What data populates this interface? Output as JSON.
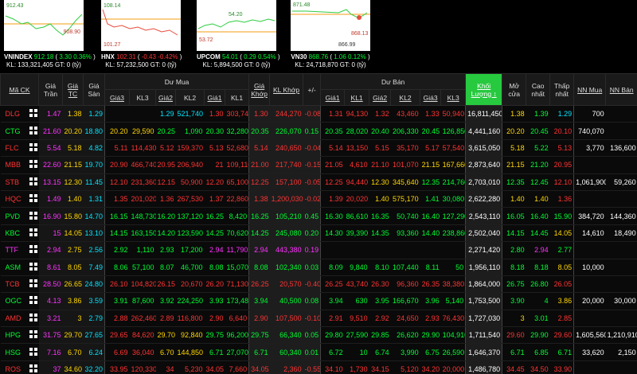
{
  "indices": [
    {
      "name": "VNINDEX",
      "value": "912.18",
      "change": "3.30",
      "pct": "0.36%",
      "kl": "133,321,405",
      "gt": "0",
      "high": "912.43",
      "low": "908.90"
    },
    {
      "name": "HNX",
      "value": "102.31",
      "change": "-0.43",
      "pct": "-0.42%",
      "kl": "57,232,500",
      "gt": "0",
      "high": "108.14",
      "low": "101.27"
    },
    {
      "name": "UPCOM",
      "value": "54.01",
      "change": "0.29",
      "pct": "0.54%",
      "kl": "5,894,500",
      "gt": "0",
      "high": "54.20",
      "low": "53.72"
    },
    {
      "name": "VN30",
      "value": "868.76",
      "change": "1.06",
      "pct": "0.12%",
      "kl": "24,718,870",
      "gt": "0",
      "high": "871.48",
      "low": "866.99",
      "last": "868.13"
    }
  ],
  "index_labels": {
    "kl": "KL:",
    "gt": "GT:",
    "unit": "(tỷ)"
  },
  "table": {
    "symbol": "Mã CK",
    "buy_group": "Dư Mua",
    "sell_group": "Dư Bán",
    "columns": [
      "Giá Trần",
      "Giá TC",
      "Giá Sàn",
      "Giá3",
      "KL3",
      "Giá2",
      "KL2",
      "Giá1",
      "KL1",
      "Giá Khớp",
      "KL Khớp",
      "+/-",
      "Giá1",
      "KL1",
      "Giá2",
      "KL2",
      "Giá3",
      "KL3",
      "Khối Lượng ↕",
      "Mở cửa",
      "Cao nhất",
      "Thấp nhất",
      "NN Mua",
      "NN Bán"
    ],
    "rows": [
      {
        "symbol": "DLG",
        "cells": [
          "1.47",
          "1.38",
          "1.29",
          null,
          null,
          "1.29",
          "521,740",
          "1.30",
          "303,740",
          "1.30",
          "244,270",
          "-0.08",
          "1.31",
          "94,130",
          "1.32",
          "43,460",
          "1.33",
          "50,940",
          "16,811,450",
          "1.38",
          "1.39",
          "1.29",
          "700",
          null
        ]
      },
      {
        "symbol": "CTG",
        "cells": [
          "21.60",
          "20.20",
          "18.80",
          "20.20",
          "29,590",
          "20.25",
          "1,090",
          "20.30",
          "32,280",
          "20.35",
          "226,070",
          "0.15",
          "20.35",
          "28,020",
          "20.40",
          "206,330",
          "20.45",
          "126,850",
          "4,441,160",
          "20.20",
          "20.45",
          "20.10",
          "740,070",
          null
        ]
      },
      {
        "symbol": "FLC",
        "cells": [
          "5.54",
          "5.18",
          "4.82",
          "5.11",
          "114,430",
          "5.12",
          "159,370",
          "5.13",
          "52,680",
          "5.14",
          "240,650",
          "-0.04",
          "5.14",
          "13,150",
          "5.15",
          "35,170",
          "5.17",
          "57,540",
          "3,615,050",
          "5.18",
          "5.22",
          "5.13",
          "3,770",
          "136,600"
        ]
      },
      {
        "symbol": "MBB",
        "cells": [
          "22.60",
          "21.15",
          "19.70",
          "20.90",
          "466,740",
          "20.95",
          "206,940",
          "21",
          "109,110",
          "21.00",
          "217,740",
          "-0.15",
          "21.05",
          "4,610",
          "21.10",
          "101,070",
          "21.15",
          "167,660",
          "2,873,640",
          "21.15",
          "21.20",
          "20.95",
          null,
          null
        ]
      },
      {
        "symbol": "STB",
        "cells": [
          "13.15",
          "12.30",
          "11.45",
          "12.10",
          "231,360",
          "12.15",
          "50,900",
          "12.20",
          "65,100",
          "12.25",
          "157,100",
          "-0.05",
          "12.25",
          "94,440",
          "12.30",
          "345,640",
          "12.35",
          "214,760",
          "2,703,010",
          "12.35",
          "12.45",
          "12.10",
          "1,061,900",
          "59,260"
        ]
      },
      {
        "symbol": "HQC",
        "cells": [
          "1.49",
          "1.40",
          "1.31",
          "1.35",
          "201,020",
          "1.36",
          "267,530",
          "1.37",
          "22,860",
          "1.38",
          "1,200,030",
          "-0.02",
          "1.39",
          "20,020",
          "1.40",
          "575,170",
          "1.41",
          "30,080",
          "2,622,280",
          "1.40",
          "1.40",
          "1.36",
          null,
          null
        ]
      },
      {
        "symbol": "PVD",
        "cells": [
          "16.90",
          "15.80",
          "14.70",
          "16.15",
          "148,730",
          "16.20",
          "137,120",
          "16.25",
          "8,420",
          "16.25",
          "105,210",
          "0.45",
          "16.30",
          "86,610",
          "16.35",
          "50,740",
          "16.40",
          "127,290",
          "2,543,110",
          "16.05",
          "16.40",
          "15.90",
          "384,720",
          "144,360"
        ]
      },
      {
        "symbol": "KBC",
        "cells": [
          "15",
          "14.05",
          "13.10",
          "14.15",
          "163,150",
          "14.20",
          "123,590",
          "14.25",
          "70,620",
          "14.25",
          "245,080",
          "0.20",
          "14.30",
          "39,390",
          "14.35",
          "93,360",
          "14.40",
          "238,860",
          "2,502,040",
          "14.15",
          "14.45",
          "14.05",
          "14,610",
          "18,490"
        ]
      },
      {
        "symbol": "TTF",
        "cells": [
          "2.94",
          "2.75",
          "2.56",
          "2.92",
          "1,110",
          "2.93",
          "17,200",
          "2.94",
          "11,790",
          "2.94",
          "443,380",
          "0.19",
          null,
          null,
          null,
          null,
          null,
          null,
          "2,271,420",
          "2.80",
          "2.94",
          "2.77",
          null,
          null
        ]
      },
      {
        "symbol": "ASM",
        "cells": [
          "8.61",
          "8.05",
          "7.49",
          "8.06",
          "57,100",
          "8.07",
          "46,700",
          "8.08",
          "15,070",
          "8.08",
          "102,340",
          "0.03",
          "8.09",
          "9,840",
          "8.10",
          "107,440",
          "8.11",
          "50",
          "1,956,110",
          "8.18",
          "8.18",
          "8.05",
          "10,000",
          null
        ]
      },
      {
        "symbol": "TCB",
        "cells": [
          "28.50",
          "26.65",
          "24.80",
          "26.10",
          "104,820",
          "26.15",
          "20,670",
          "26.20",
          "71,130",
          "26.25",
          "20,570",
          "-0.40",
          "26.25",
          "43,740",
          "26.30",
          "96,360",
          "26.35",
          "38,380",
          "1,864,000",
          "26.75",
          "26.80",
          "26.05",
          null,
          null
        ]
      },
      {
        "symbol": "OGC",
        "cells": [
          "4.13",
          "3.86",
          "3.59",
          "3.91",
          "87,600",
          "3.92",
          "224,250",
          "3.93",
          "173,480",
          "3.94",
          "40,500",
          "0.08",
          "3.94",
          "630",
          "3.95",
          "166,670",
          "3.96",
          "5,140",
          "1,753,500",
          "3.90",
          "4",
          "3.86",
          "20,000",
          "30,000"
        ]
      },
      {
        "symbol": "AMD",
        "cells": [
          "3.21",
          "3",
          "2.79",
          "2.88",
          "262,460",
          "2.89",
          "116,800",
          "2.90",
          "6,640",
          "2.90",
          "107,500",
          "-0.10",
          "2.91",
          "9,510",
          "2.92",
          "24,650",
          "2.93",
          "76,430",
          "1,727,030",
          "3",
          "3.01",
          "2.85",
          null,
          null
        ]
      },
      {
        "symbol": "HPG",
        "cells": [
          "31.75",
          "29.70",
          "27.65",
          "29.65",
          "84,620",
          "29.70",
          "92,840",
          "29.75",
          "96,200",
          "29.75",
          "66,340",
          "0.05",
          "29.80",
          "27,590",
          "29.85",
          "26,620",
          "29.90",
          "104,910",
          "1,711,540",
          "29.60",
          "29.90",
          "29.60",
          "1,605,560",
          "1,210,910"
        ]
      },
      {
        "symbol": "HSG",
        "cells": [
          "7.16",
          "6.70",
          "6.24",
          "6.69",
          "36,040",
          "6.70",
          "144,850",
          "6.71",
          "27,070",
          "6.71",
          "60,340",
          "0.01",
          "6.72",
          "10",
          "6.74",
          "3,990",
          "6.75",
          "26,590",
          "1,646,370",
          "6.71",
          "6.85",
          "6.71",
          "33,620",
          "2,150"
        ]
      },
      {
        "symbol": "ROS",
        "cells": [
          "37",
          "34.60",
          "32.20",
          "33.95",
          "120,330",
          "34",
          "5,230",
          "34.05",
          "7,660",
          "34.05",
          "2,360",
          "-0.55",
          "34.10",
          "1,730",
          "34.15",
          "5,120",
          "34.20",
          "20,000",
          "1,486,780",
          "34.45",
          "34.50",
          "33.90",
          null,
          null
        ]
      }
    ]
  }
}
